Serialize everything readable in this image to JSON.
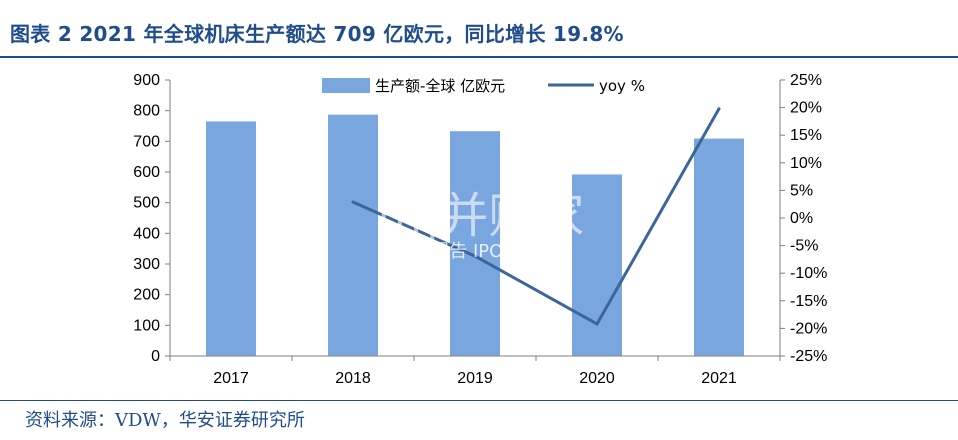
{
  "title": "图表 2 2021 年全球机床生产额达 709 亿欧元，同比增长 19.8%",
  "source": "资料来源：VDW，华安证券研究所",
  "watermark": {
    "main": "||||并购家",
    "sub": "行业报告 IPOIPO.CN"
  },
  "colors": {
    "bar": "#7aa6e0",
    "line": "#3a6699",
    "title": "#1f4d8c",
    "axis": "#7f7f7f"
  },
  "chart_data": {
    "type": "bar",
    "categories": [
      "2017",
      "2018",
      "2019",
      "2020",
      "2021"
    ],
    "series": [
      {
        "name": "生产额-全球 亿欧元",
        "type": "bar",
        "axis": "left",
        "values": [
          765,
          787,
          733,
          592,
          709
        ]
      },
      {
        "name": "yoy %",
        "type": "line",
        "axis": "right",
        "x": [
          "2018",
          "2019",
          "2020",
          "2021"
        ],
        "values": [
          2.9,
          -6.9,
          -19.2,
          19.8
        ]
      }
    ],
    "y_left": {
      "min": 0,
      "max": 900,
      "ticks": [
        "0",
        "100",
        "200",
        "300",
        "400",
        "500",
        "600",
        "700",
        "800",
        "900"
      ]
    },
    "y_right": {
      "min": -25,
      "max": 25,
      "ticks": [
        "-25%",
        "-20%",
        "-15%",
        "-10%",
        "-5%",
        "0%",
        "5%",
        "10%",
        "15%",
        "20%",
        "25%"
      ]
    },
    "legend": "top-center",
    "grid": false
  }
}
